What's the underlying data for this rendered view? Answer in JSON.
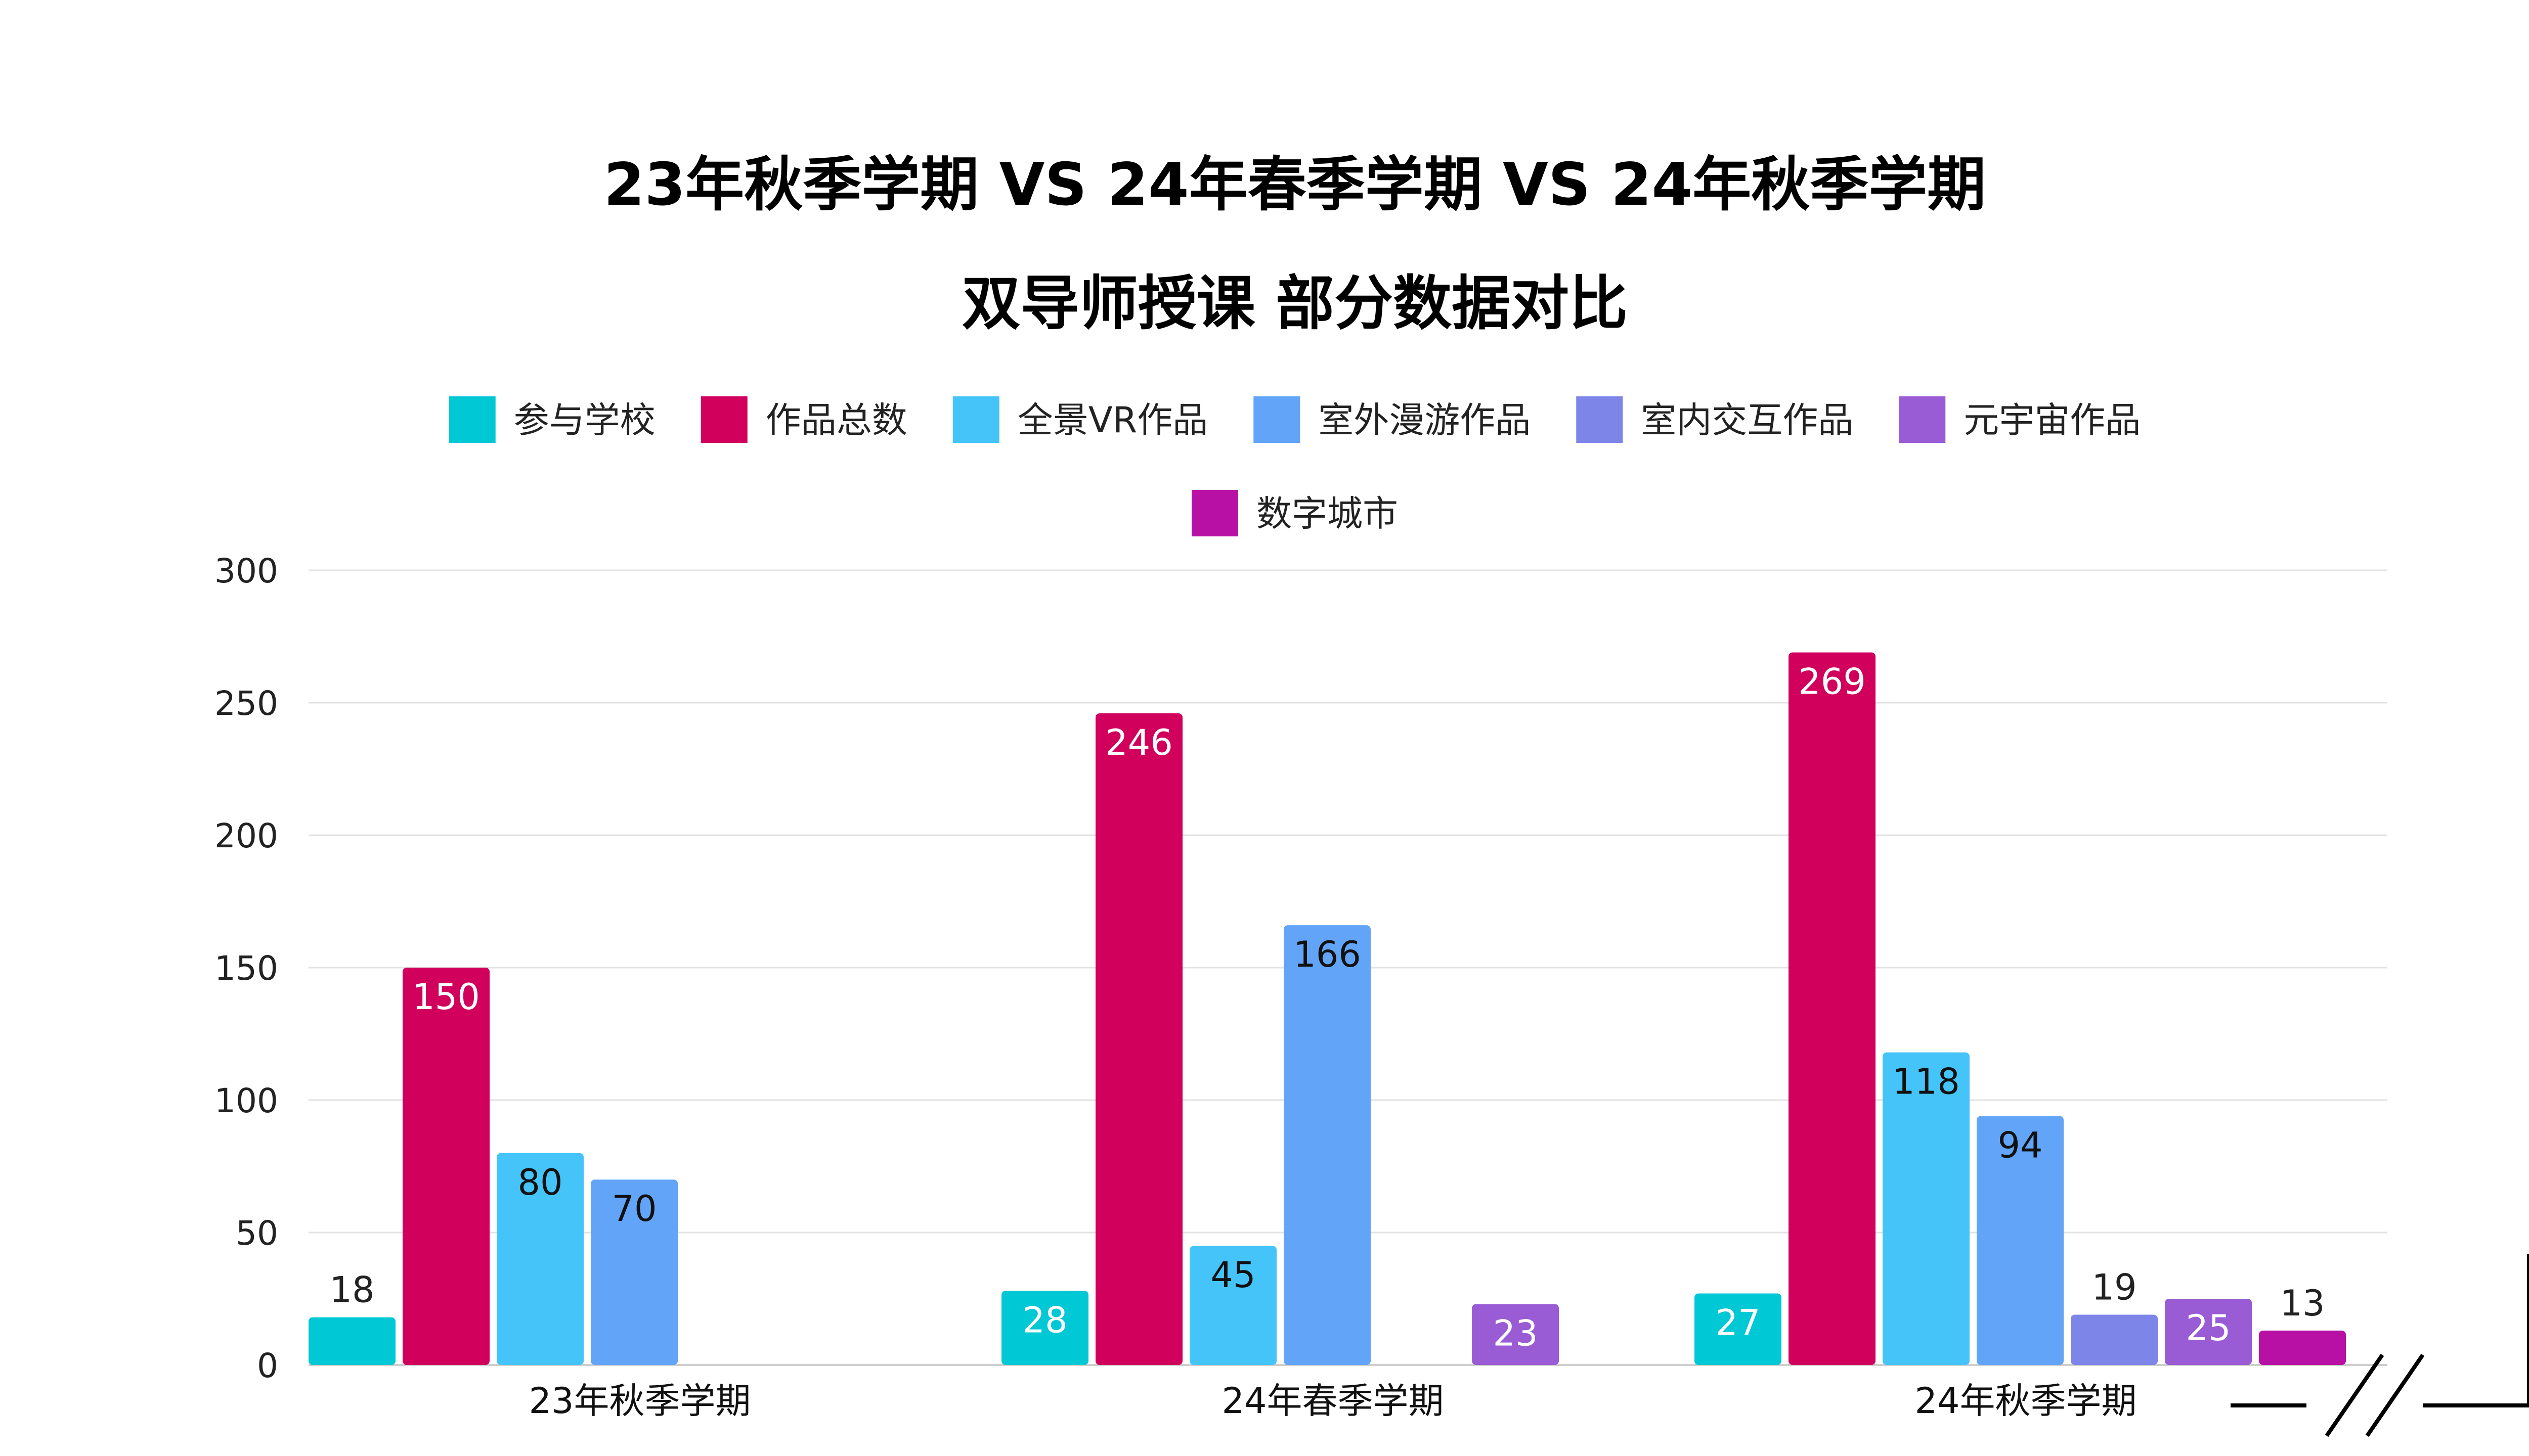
{
  "chart_data": {
    "type": "bar",
    "title": "23年秋季学期 VS 24年春季学期 VS 24年秋季学期",
    "subtitle": "双导师授课 部分数据对比",
    "categories": [
      "23年秋季学期",
      "24年春季学期",
      "24年秋季学期"
    ],
    "series": [
      {
        "name": "参与学校",
        "color": "#00C8D4",
        "values": [
          18,
          28,
          27
        ]
      },
      {
        "name": "作品总数",
        "color": "#D0005C",
        "values": [
          150,
          246,
          269
        ]
      },
      {
        "name": "全景VR作品",
        "color": "#45C4FA",
        "values": [
          80,
          45,
          118
        ]
      },
      {
        "name": "室外漫游作品",
        "color": "#62A5F8",
        "values": [
          70,
          166,
          94
        ]
      },
      {
        "name": "室内交互作品",
        "color": "#7D86E8",
        "values": [
          null,
          null,
          19
        ]
      },
      {
        "name": "元宇宙作品",
        "color": "#9A5CD4",
        "values": [
          null,
          23,
          25
        ]
      },
      {
        "name": "数字城市",
        "color": "#B810A4",
        "values": [
          null,
          null,
          13
        ]
      }
    ],
    "ylim": [
      0,
      300
    ],
    "yticks": [
      0,
      50,
      100,
      150,
      200,
      250,
      300
    ],
    "grid": true,
    "legend": "top-center"
  }
}
